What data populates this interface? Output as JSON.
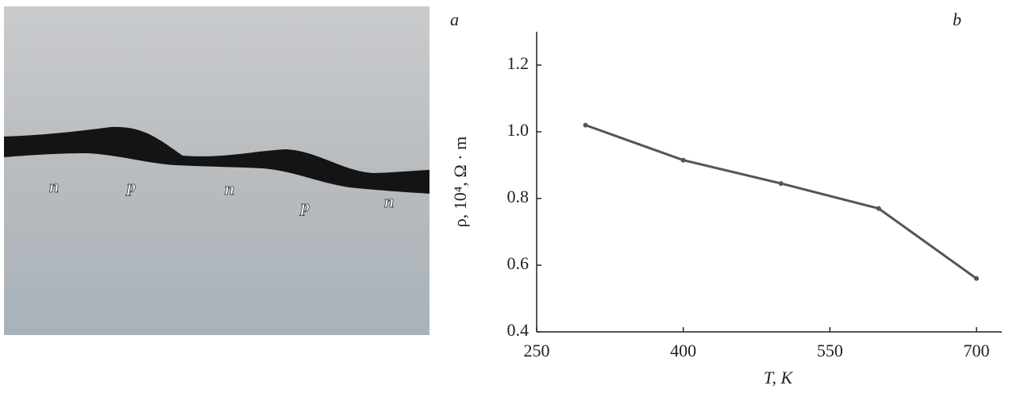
{
  "photo": {
    "panel_label": "a",
    "labels": [
      "n",
      "p",
      "n",
      "p",
      "n"
    ]
  },
  "chart_data": {
    "type": "line",
    "panel_label": "b",
    "x_label": "T, K",
    "y_label": "ρ, 10⁴, Ω · m",
    "x": [
      300,
      400,
      500,
      600,
      700
    ],
    "series": [
      {
        "color": "#555555",
        "values": [
          1.02,
          0.915,
          0.845,
          0.77,
          0.56
        ]
      }
    ],
    "xlim": [
      250,
      726
    ],
    "ylim": [
      0.4,
      1.3
    ],
    "xticks": [
      250,
      400,
      550,
      700
    ],
    "yticks": [
      0.4,
      0.6,
      0.8,
      {
        "value": 1,
        "label": "1.0"
      },
      1.2
    ]
  }
}
